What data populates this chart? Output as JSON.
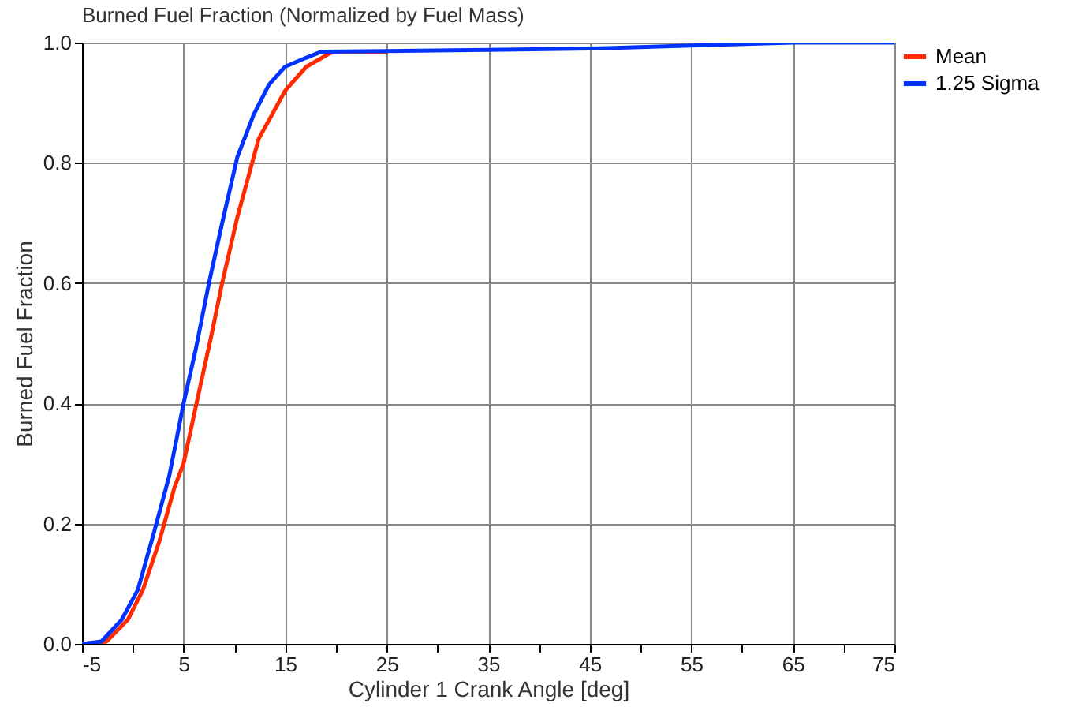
{
  "chart_data": {
    "type": "line",
    "title": "Burned Fuel Fraction (Normalized by Fuel Mass)",
    "xlabel": "Cylinder  1 Crank Angle [deg]",
    "ylabel": "Burned Fuel Fraction",
    "xlim": [
      -5,
      75
    ],
    "xticks": [
      -5,
      {
        "value": 0,
        "label": null
      },
      5,
      {
        "value": 10,
        "label": null
      },
      15,
      {
        "value": 20,
        "label": null
      },
      25,
      {
        "value": 30,
        "label": null
      },
      35,
      {
        "value": 40,
        "label": null
      },
      45,
      {
        "value": 50,
        "label": null
      },
      55,
      {
        "value": 60,
        "label": null
      },
      65,
      {
        "value": 70,
        "label": null
      },
      75
    ],
    "ylim": [
      0,
      1
    ],
    "yticks": [
      {
        "value": 0,
        "label": "0.0"
      },
      0.2,
      0.4,
      0.6,
      0.8,
      {
        "value": 1,
        "label": "1.0"
      }
    ],
    "grid": true,
    "legend": "top right",
    "marker": "none",
    "line_style": "solid",
    "series": [
      {
        "name": "Mean",
        "color": "#ff2a00",
        "x": [
          -5,
          -2.6,
          -0.5,
          1.0,
          2.6,
          4.1,
          5.0,
          6.4,
          7.7,
          8.8,
          10.3,
          12.4,
          15,
          17.1,
          19.7,
          25
        ],
        "values": [
          0,
          0.004,
          0.04,
          0.09,
          0.17,
          0.26,
          0.3,
          0.41,
          0.51,
          0.6,
          0.71,
          0.84,
          0.92,
          0.96,
          0.985,
          0.985
        ]
      },
      {
        "name": "1.25 Sigma",
        "color": "#0033ff",
        "x": [
          -5,
          -3.1,
          -1.1,
          0.5,
          2.0,
          3.6,
          5.0,
          6.2,
          7.5,
          8.8,
          10.3,
          11.9,
          13.4,
          15,
          17.1,
          18.6,
          25,
          35,
          45,
          55,
          65,
          75
        ],
        "values": [
          0,
          0.004,
          0.04,
          0.09,
          0.18,
          0.28,
          0.4,
          0.49,
          0.6,
          0.7,
          0.81,
          0.88,
          0.93,
          0.96,
          0.975,
          0.985,
          0.986,
          0.988,
          0.99,
          0.995,
          1.0,
          1.0
        ]
      }
    ]
  }
}
